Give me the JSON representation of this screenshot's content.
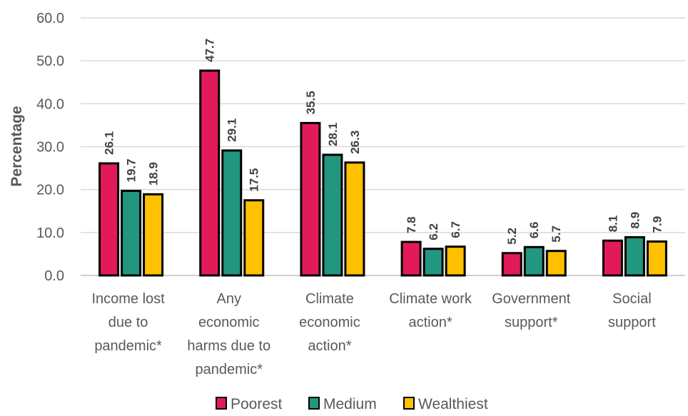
{
  "chart_data": {
    "type": "bar",
    "title": "",
    "xlabel": "",
    "ylabel": "Percentage",
    "ylim": [
      0,
      60
    ],
    "yticks": [
      "0.0",
      "10.0",
      "20.0",
      "30.0",
      "40.0",
      "50.0",
      "60.0"
    ],
    "grid": true,
    "legend_position": "bottom",
    "categories": [
      [
        "Income lost",
        "due to",
        "pandemic*"
      ],
      [
        "Any",
        "economic",
        "harms due to",
        "pandemic*"
      ],
      [
        "Climate",
        "economic",
        "action*"
      ],
      [
        "Climate work",
        "action*"
      ],
      [
        "Government",
        "support*"
      ],
      [
        "Social",
        "support"
      ]
    ],
    "series": [
      {
        "name": "Poorest",
        "color": "#e31a5a",
        "values": [
          26.1,
          47.7,
          35.5,
          7.8,
          5.2,
          8.1
        ],
        "labels": [
          "26.1",
          "47.7",
          "35.5",
          "7.8",
          "5.2",
          "8.1"
        ]
      },
      {
        "name": "Medium",
        "color": "#23967f",
        "values": [
          19.7,
          29.1,
          28.1,
          6.2,
          6.6,
          8.9
        ],
        "labels": [
          "19.7",
          "29.1",
          "28.1",
          "6.2",
          "6.6",
          "8.9"
        ]
      },
      {
        "name": "Wealthiest",
        "color": "#ffc000",
        "values": [
          18.9,
          17.5,
          26.3,
          6.7,
          5.7,
          7.9
        ],
        "labels": [
          "18.9",
          "17.5",
          "26.3",
          "6.7",
          "5.7",
          "7.9"
        ]
      }
    ]
  }
}
